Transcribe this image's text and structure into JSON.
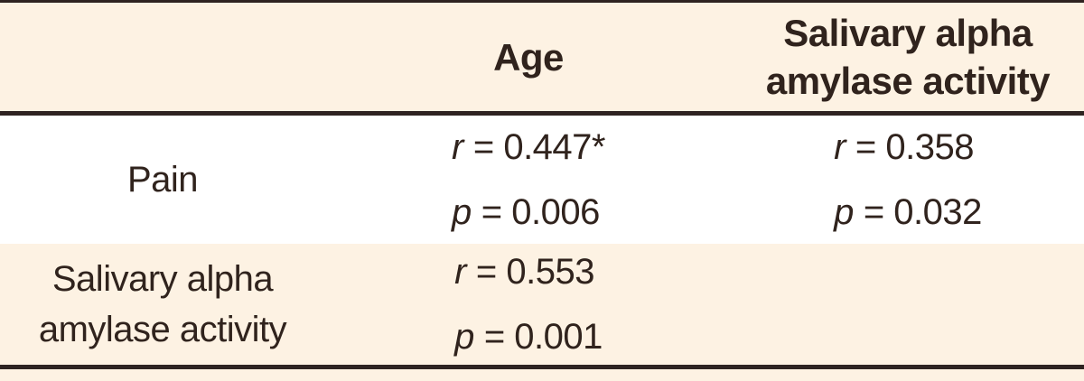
{
  "table": {
    "header": {
      "age": "Age",
      "saa_line1": "Salivary alpha",
      "saa_line2": "amylase activity"
    },
    "row_pain": {
      "label": "Pain",
      "age": {
        "r_sym": "r",
        "r_val": "= 0.447*",
        "p_sym": "p",
        "p_val": "= 0.006"
      },
      "saa": {
        "r_sym": "r",
        "r_val": "= 0.358",
        "p_sym": "p",
        "p_val": "= 0.032"
      }
    },
    "row_saa": {
      "label_line1": "Salivary alpha",
      "label_line2": "amylase activity",
      "age": {
        "r_sym": "r",
        "r_val": "= 0.553",
        "p_sym": "p",
        "p_val": "= 0.001"
      }
    }
  },
  "colors": {
    "cream": "#fdf2e3",
    "white": "#ffffff",
    "border": "#2e2321",
    "text": "#30231d"
  }
}
